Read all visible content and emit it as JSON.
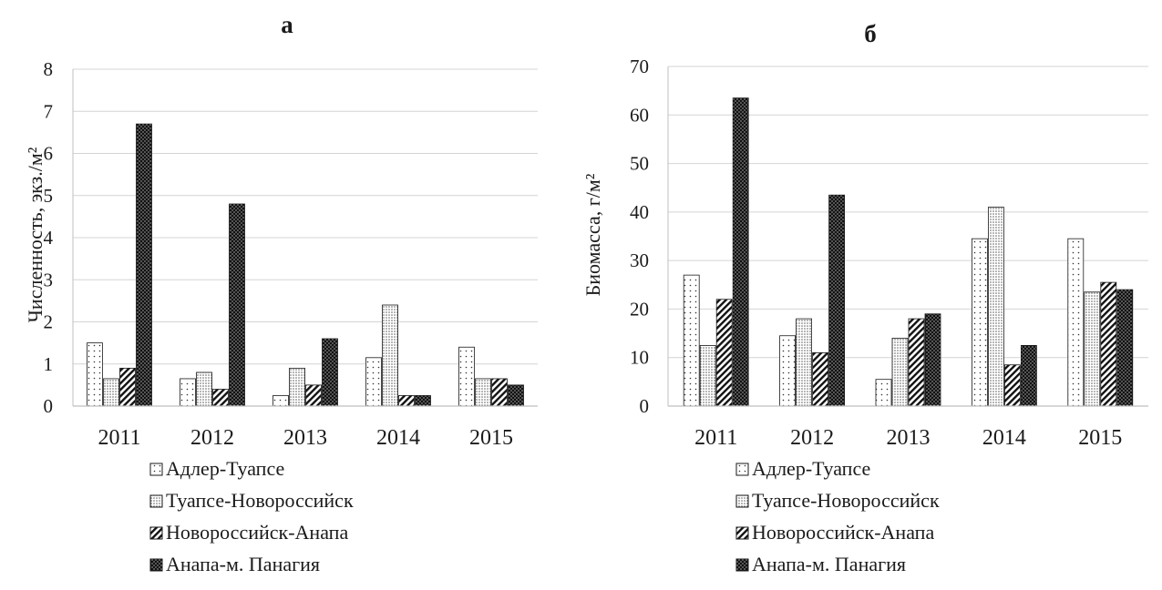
{
  "chart_data": [
    {
      "type": "bar",
      "title": "а",
      "ylabel": "Численность, экз./м²",
      "xlabel": "",
      "ylim": [
        0,
        8
      ],
      "yticks": [
        0,
        1,
        2,
        3,
        4,
        5,
        6,
        7,
        8
      ],
      "grid": true,
      "legend_position": "bottom",
      "categories": [
        "2011",
        "2012",
        "2013",
        "2014",
        "2015"
      ],
      "series": [
        {
          "name": "Адлер-Туапсе",
          "pattern": "sparse-dots",
          "values": [
            1.5,
            0.65,
            0.25,
            1.15,
            1.4
          ]
        },
        {
          "name": "Туапсе-Новороссийск",
          "pattern": "dense-dots",
          "values": [
            0.65,
            0.8,
            0.9,
            2.4,
            0.65
          ]
        },
        {
          "name": "Новороссийск-Анапа",
          "pattern": "diagonal-hatch",
          "values": [
            0.9,
            0.4,
            0.5,
            0.25,
            0.65
          ]
        },
        {
          "name": "Анапа-м. Панагия",
          "pattern": "dark-dots",
          "values": [
            6.7,
            4.8,
            1.6,
            0.25,
            0.5
          ]
        }
      ]
    },
    {
      "type": "bar",
      "title": "б",
      "ylabel": "Биомасса, г/м²",
      "xlabel": "",
      "ylim": [
        0,
        70
      ],
      "yticks": [
        0,
        10,
        20,
        30,
        40,
        50,
        60,
        70
      ],
      "grid": true,
      "legend_position": "bottom",
      "categories": [
        "2011",
        "2012",
        "2013",
        "2014",
        "2015"
      ],
      "series": [
        {
          "name": "Адлер-Туапсе",
          "pattern": "sparse-dots",
          "values": [
            27,
            14.5,
            5.5,
            34.5,
            34.5
          ]
        },
        {
          "name": "Туапсе-Новороссийск",
          "pattern": "dense-dots",
          "values": [
            12.5,
            18,
            14,
            41,
            23.5
          ]
        },
        {
          "name": "Новороссийск-Анапа",
          "pattern": "diagonal-hatch",
          "values": [
            22,
            11,
            18,
            8.5,
            25.5
          ]
        },
        {
          "name": "Анапа-м. Панагия",
          "pattern": "dark-dots",
          "values": [
            63.5,
            43.5,
            19,
            12.5,
            24
          ]
        }
      ]
    }
  ]
}
